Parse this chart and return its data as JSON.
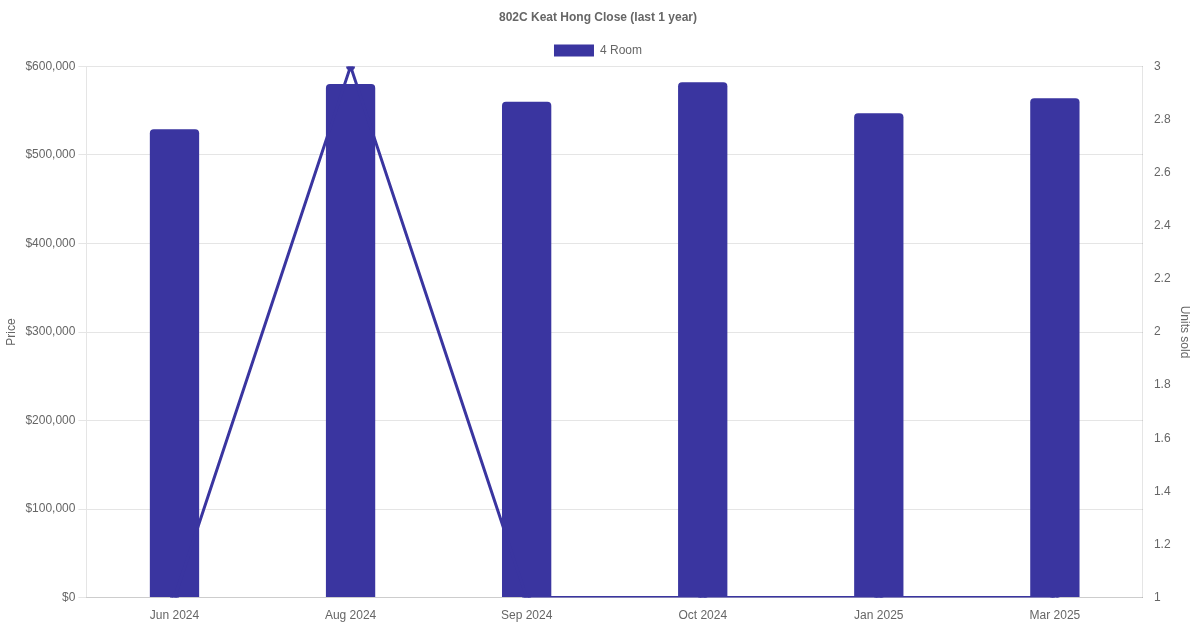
{
  "chart_data": {
    "type": "bar",
    "title": "802C Keat Hong Close (last 1 year)",
    "ylabel": "Price",
    "y2label": "Units sold",
    "categories": [
      "Jun 2024",
      "Aug 2024",
      "Sep 2024",
      "Oct 2024",
      "Jan 2025",
      "Mar 2025"
    ],
    "series": [
      {
        "name": "4 Room",
        "color": "#3a35a0",
        "values": [
          529000,
          580000,
          560000,
          582000,
          547000,
          564000
        ]
      },
      {
        "type": "line",
        "axis": "y2",
        "color": "#3a35a0",
        "values": [
          1,
          3,
          1,
          1,
          1,
          1
        ]
      }
    ],
    "ylim": [
      0,
      600000
    ],
    "yticks": [
      {
        "value": 0,
        "label": "$0"
      },
      {
        "value": 100000,
        "label": "$100,000"
      },
      {
        "value": 200000,
        "label": "$200,000"
      },
      {
        "value": 300000,
        "label": "$300,000"
      },
      {
        "value": 400000,
        "label": "$400,000"
      },
      {
        "value": 500000,
        "label": "$500,000"
      },
      {
        "value": 600000,
        "label": "$600,000"
      }
    ],
    "y2lim": [
      1,
      3
    ],
    "y2ticks": [
      1,
      1.2,
      1.4,
      1.6,
      1.8,
      2,
      2.2,
      2.4,
      2.6,
      2.8,
      3
    ],
    "grid": "y",
    "legend": "top",
    "marker": "circle",
    "line_style": "solid"
  }
}
